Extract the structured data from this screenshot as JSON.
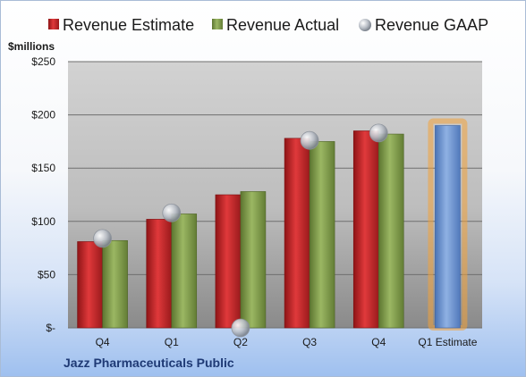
{
  "chart_data": {
    "type": "bar",
    "ylabel": "$millions",
    "company": "Jazz Pharmaceuticals Public",
    "categories": [
      "Q4",
      "Q1",
      "Q2",
      "Q3",
      "Q4",
      "Q1 Estimate"
    ],
    "ylim": [
      0,
      250
    ],
    "yticks": [
      {
        "value": 0,
        "label": "$-"
      },
      {
        "value": 50,
        "label": "$50"
      },
      {
        "value": 100,
        "label": "$100"
      },
      {
        "value": 150,
        "label": "$150"
      },
      {
        "value": 200,
        "label": "$200"
      },
      {
        "value": 250,
        "label": "$250"
      }
    ],
    "grid": true,
    "legend_position": "top",
    "series": [
      {
        "name": "Revenue Estimate",
        "kind": "bar",
        "color": "#c0282b",
        "values": [
          81,
          102,
          125,
          178,
          185,
          null
        ]
      },
      {
        "name": "Revenue Actual",
        "kind": "bar",
        "color": "#7f9a48",
        "values": [
          82,
          107,
          128,
          175,
          182,
          null
        ]
      },
      {
        "name": "Revenue GAAP",
        "kind": "marker",
        "color": "#b8bfc8",
        "values": [
          84,
          108,
          0,
          176,
          183,
          null
        ]
      }
    ],
    "forecast": {
      "category_index": 5,
      "name": "Q1 Estimate",
      "value": 190,
      "color": "#6f96d3",
      "glow": "#f2a23a"
    }
  }
}
